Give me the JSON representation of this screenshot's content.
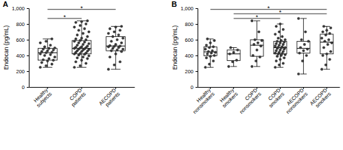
{
  "chart_data": [
    {
      "type": "box",
      "title": "A",
      "y_label": "Endocan (pg/mL)",
      "categories": [
        "Healthy subjects",
        "COPD patients",
        "AECOPD patients"
      ],
      "ylim": [
        0,
        1000
      ],
      "yticks": [
        0,
        200,
        400,
        600,
        800,
        {
          "value": 1000,
          "label": "1,000"
        }
      ],
      "whisker_low": [
        250,
        250,
        225
      ],
      "q1": [
        340,
        420,
        460
      ],
      "median": [
        435,
        490,
        520
      ],
      "q3": [
        490,
        590,
        640
      ],
      "whisker_high": [
        610,
        840,
        770
      ],
      "values": [
        [
          250,
          270,
          290,
          310,
          330,
          340,
          345,
          360,
          380,
          400,
          410,
          420,
          435,
          440,
          450,
          460,
          470,
          480,
          490,
          495,
          510,
          530,
          560,
          580,
          610
        ],
        [
          250,
          270,
          300,
          320,
          340,
          360,
          370,
          380,
          395,
          405,
          415,
          420,
          425,
          430,
          440,
          450,
          455,
          460,
          470,
          475,
          480,
          485,
          490,
          495,
          500,
          505,
          510,
          520,
          530,
          540,
          550,
          560,
          570,
          580,
          590,
          600,
          610,
          620,
          640,
          660,
          680,
          700,
          720,
          740,
          760,
          780,
          800,
          820,
          830,
          840
        ],
        [
          225,
          280,
          320,
          380,
          420,
          450,
          460,
          470,
          480,
          490,
          500,
          510,
          515,
          520,
          525,
          540,
          560,
          580,
          600,
          620,
          640,
          660,
          680,
          700,
          720,
          740,
          760,
          770
        ]
      ],
      "annotations": [
        {
          "from": "Healthy subjects",
          "to": "COPD patients",
          "y": 870,
          "label": "*"
        },
        {
          "from": "Healthy subjects",
          "to": "AECOPD patients",
          "y": 985,
          "label": "*"
        }
      ]
    },
    {
      "type": "box",
      "title": "B",
      "y_label": "Endocan (pg/mL)",
      "categories": [
        "Healthy nonsmokers",
        "Healthy smokers",
        "COPD nonsmokers",
        "COPD smokers",
        "AECOPD nonsmokers",
        "AECOPD smokers"
      ],
      "ylim": [
        0,
        1000
      ],
      "yticks": [
        0,
        200,
        400,
        600,
        800,
        {
          "value": 1000,
          "label": "1,000"
        }
      ],
      "whisker_low": [
        250,
        260,
        260,
        250,
        165,
        225
      ],
      "q1": [
        395,
        335,
        390,
        420,
        430,
        420
      ],
      "median": [
        445,
        420,
        530,
        500,
        490,
        570
      ],
      "q3": [
        510,
        470,
        600,
        580,
        580,
        670
      ],
      "whisker_high": [
        610,
        500,
        840,
        800,
        870,
        770
      ],
      "values": [
        [
          250,
          290,
          330,
          370,
          390,
          400,
          420,
          430,
          440,
          450,
          460,
          480,
          500,
          510,
          530,
          560,
          590,
          610
        ],
        [
          260,
          320,
          340,
          420,
          440,
          470,
          500
        ],
        [
          260,
          330,
          380,
          400,
          470,
          520,
          540,
          560,
          590,
          600,
          700,
          840
        ],
        [
          250,
          280,
          300,
          330,
          350,
          370,
          390,
          400,
          410,
          420,
          425,
          430,
          440,
          450,
          460,
          470,
          480,
          490,
          495,
          500,
          505,
          510,
          520,
          530,
          540,
          550,
          560,
          570,
          580,
          590,
          600,
          620,
          640,
          670,
          700,
          730,
          770,
          800
        ],
        [
          165,
          330,
          400,
          430,
          460,
          480,
          500,
          540,
          580,
          600,
          700,
          870
        ],
        [
          225,
          280,
          350,
          400,
          420,
          450,
          500,
          540,
          560,
          580,
          600,
          620,
          660,
          680,
          700,
          720,
          750,
          770
        ]
      ],
      "annotations": [
        {
          "from": "Healthy nonsmokers",
          "to": "AECOPD smokers",
          "y": 985,
          "label": "*"
        },
        {
          "from": "Healthy smokers",
          "to": "AECOPD smokers",
          "y": 930,
          "label": "*"
        },
        {
          "from": "Healthy smokers",
          "to": "COPD smokers",
          "y": 870,
          "label": "*"
        }
      ]
    }
  ]
}
